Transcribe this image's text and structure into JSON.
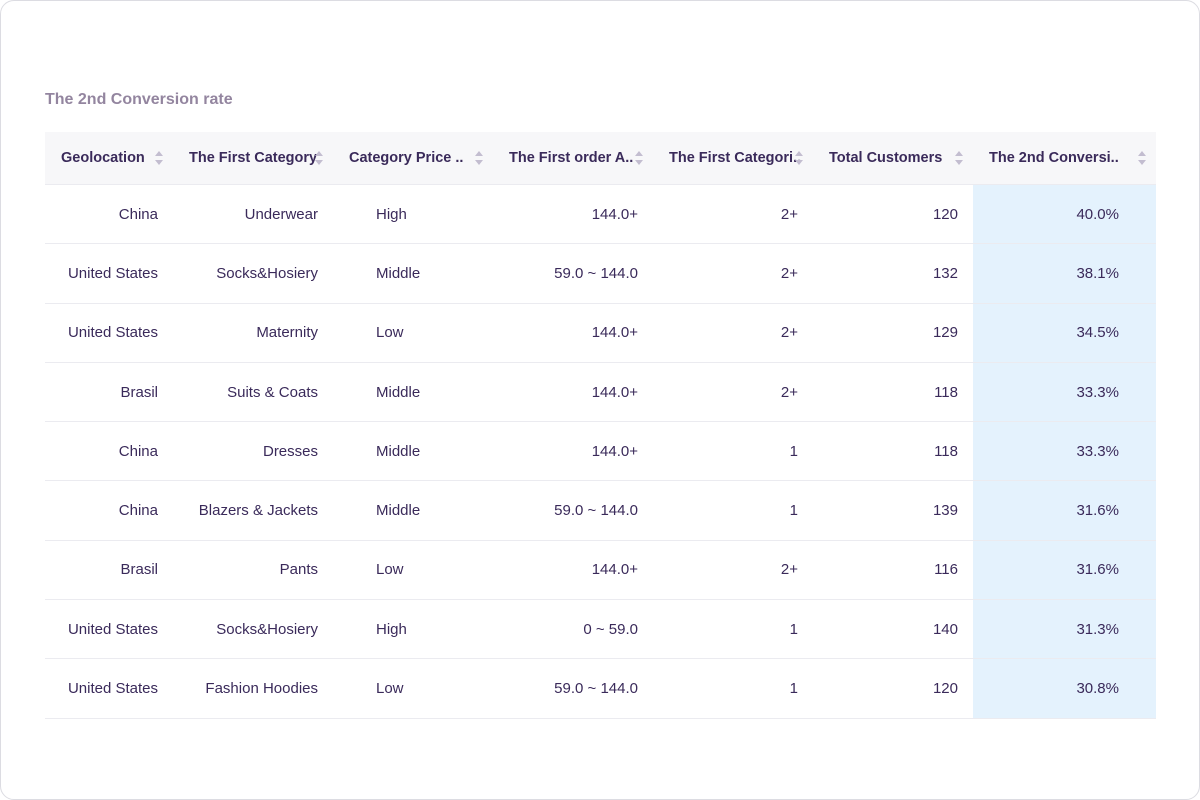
{
  "title": "The 2nd Conversion rate",
  "table": {
    "columns": [
      "Geolocation",
      "The First Category",
      "Category Price ..",
      "The First order A..",
      "The First Categori..",
      "Total Customers",
      "The 2nd Conversi.."
    ],
    "rows": [
      [
        "China",
        "Underwear",
        "High",
        "144.0+",
        "2+",
        "120",
        "40.0%"
      ],
      [
        "United States",
        "Socks&Hosiery",
        "Middle",
        "59.0 ~ 144.0",
        "2+",
        "132",
        "38.1%"
      ],
      [
        "United States",
        "Maternity",
        "Low",
        "144.0+",
        "2+",
        "129",
        "34.5%"
      ],
      [
        "Brasil",
        "Suits & Coats",
        "Middle",
        "144.0+",
        "2+",
        "118",
        "33.3%"
      ],
      [
        "China",
        "Dresses",
        "Middle",
        "144.0+",
        "1",
        "118",
        "33.3%"
      ],
      [
        "China",
        "Blazers & Jackets",
        "Middle",
        "59.0 ~ 144.0",
        "1",
        "139",
        "31.6%"
      ],
      [
        "Brasil",
        "Pants",
        "Low",
        "144.0+",
        "2+",
        "116",
        "31.6%"
      ],
      [
        "United States",
        "Socks&Hosiery",
        "High",
        "0 ~ 59.0",
        "1",
        "140",
        "31.3%"
      ],
      [
        "United States",
        "Fashion Hoodies",
        "Low",
        "59.0 ~ 144.0",
        "1",
        "120",
        "30.8%"
      ]
    ]
  }
}
